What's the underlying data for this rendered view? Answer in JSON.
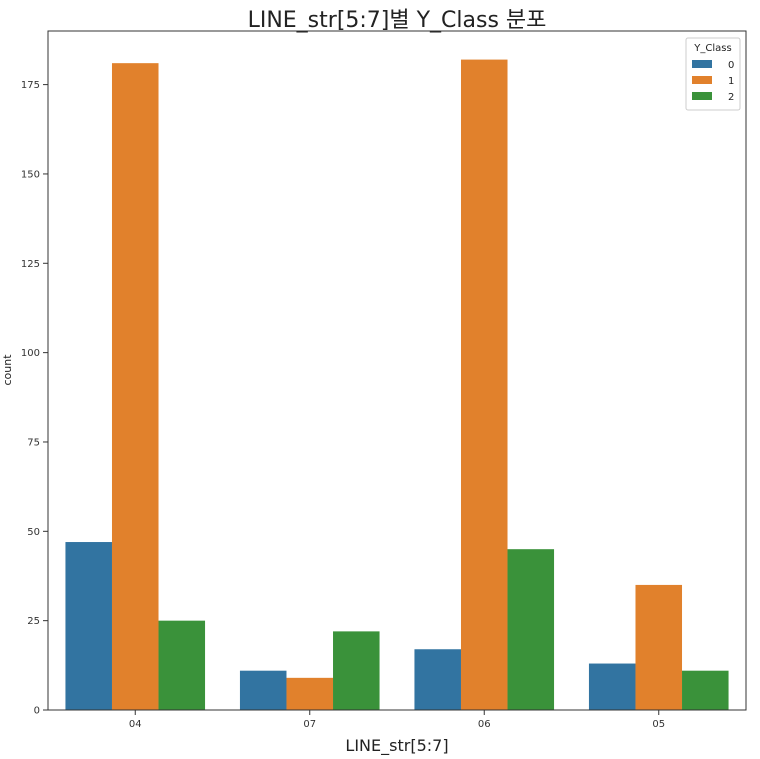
{
  "chart_data": {
    "type": "bar",
    "title": "LINE_str[5:7]별 Y_Class 분포",
    "xlabel": "LINE_str[5:7]",
    "ylabel": "count",
    "categories": [
      "04",
      "07",
      "06",
      "05"
    ],
    "series": [
      {
        "name": "0",
        "values": [
          47,
          11,
          17,
          13
        ],
        "color": "#3274a1"
      },
      {
        "name": "1",
        "values": [
          181,
          9,
          182,
          35
        ],
        "color": "#e1812c"
      },
      {
        "name": "2",
        "values": [
          25,
          22,
          45,
          11
        ],
        "color": "#3a923a"
      }
    ],
    "ylim": [
      0,
      190
    ],
    "yticks": [
      0,
      25,
      50,
      75,
      100,
      125,
      150,
      175
    ],
    "grid": false,
    "legend": {
      "title": "Y_Class",
      "placement": "top-right"
    }
  }
}
